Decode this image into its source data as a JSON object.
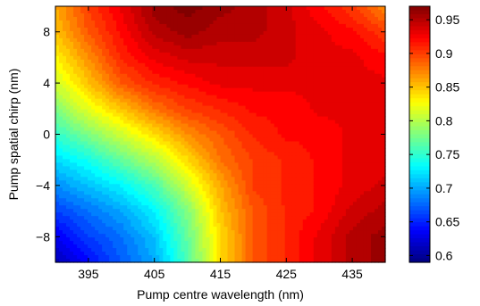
{
  "chart_data": {
    "type": "heatmap",
    "title": "",
    "xlabel": "Pump centre wavelength (nm)",
    "ylabel": "Pump spatial chirp (nm)",
    "xlim": [
      390,
      440
    ],
    "ylim": [
      -10,
      10
    ],
    "x_ticks": [
      395,
      405,
      415,
      425,
      435
    ],
    "x_tick_labels": [
      "395",
      "405",
      "415",
      "425",
      "435"
    ],
    "y_ticks": [
      8,
      4,
      0,
      -4,
      -8
    ],
    "y_tick_labels": [
      "8",
      "4",
      "0",
      "−4",
      "−8"
    ],
    "colorbar": {
      "range": [
        0.59,
        0.97
      ],
      "ticks": [
        0.95,
        0.9,
        0.85,
        0.8,
        0.75,
        0.7,
        0.65,
        0.6
      ],
      "tick_labels": [
        "0.95",
        "0.9",
        "0.85",
        "0.8",
        "0.75",
        "0.7",
        "0.65",
        "0.6"
      ],
      "colormap": "jet"
    },
    "grid": false,
    "x": [
      390,
      395,
      400,
      405,
      410,
      415,
      420,
      425,
      430,
      435,
      440
    ],
    "y": [
      10,
      8,
      6,
      4,
      2,
      0,
      -2,
      -4,
      -6,
      -8,
      -10
    ],
    "z": [
      [
        0.86,
        0.9,
        0.93,
        0.96,
        0.97,
        0.96,
        0.95,
        0.94,
        0.92,
        0.9,
        0.87
      ],
      [
        0.85,
        0.89,
        0.92,
        0.95,
        0.96,
        0.95,
        0.95,
        0.94,
        0.93,
        0.92,
        0.9
      ],
      [
        0.83,
        0.87,
        0.91,
        0.93,
        0.94,
        0.94,
        0.94,
        0.94,
        0.93,
        0.93,
        0.92
      ],
      [
        0.81,
        0.85,
        0.89,
        0.91,
        0.92,
        0.93,
        0.93,
        0.93,
        0.93,
        0.93,
        0.93
      ],
      [
        0.78,
        0.82,
        0.85,
        0.88,
        0.9,
        0.91,
        0.92,
        0.92,
        0.93,
        0.93,
        0.93
      ],
      [
        0.75,
        0.78,
        0.81,
        0.84,
        0.87,
        0.89,
        0.91,
        0.92,
        0.92,
        0.93,
        0.93
      ],
      [
        0.72,
        0.74,
        0.77,
        0.8,
        0.84,
        0.88,
        0.9,
        0.91,
        0.92,
        0.93,
        0.93
      ],
      [
        0.69,
        0.71,
        0.73,
        0.76,
        0.81,
        0.86,
        0.9,
        0.91,
        0.92,
        0.93,
        0.94
      ],
      [
        0.66,
        0.68,
        0.7,
        0.73,
        0.78,
        0.85,
        0.89,
        0.91,
        0.92,
        0.94,
        0.95
      ],
      [
        0.63,
        0.66,
        0.68,
        0.71,
        0.77,
        0.84,
        0.89,
        0.91,
        0.93,
        0.95,
        0.96
      ],
      [
        0.61,
        0.64,
        0.67,
        0.7,
        0.76,
        0.84,
        0.89,
        0.91,
        0.93,
        0.95,
        0.96
      ]
    ]
  }
}
